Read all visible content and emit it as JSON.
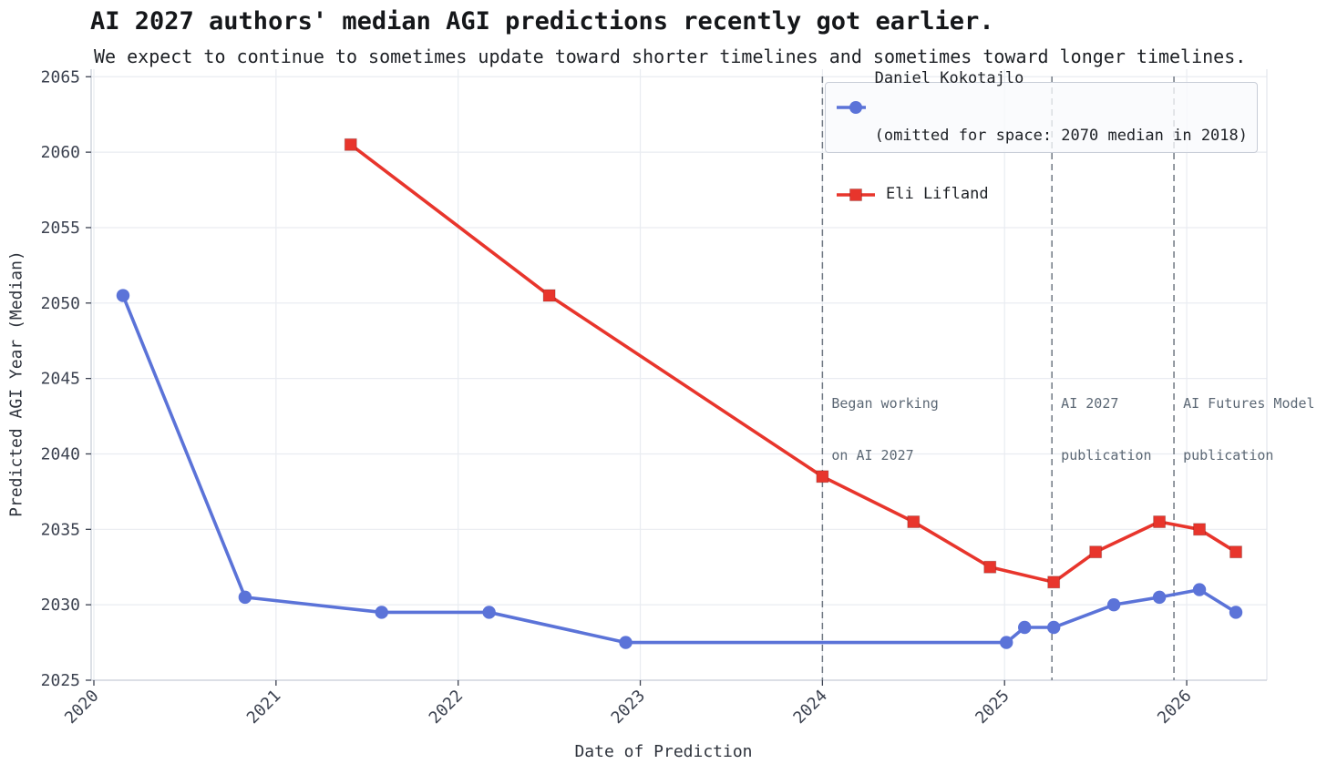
{
  "page": {
    "title": "AI 2027 authors' median AGI predictions recently got earlier.",
    "subtitle": "We expect to continue to sometimes update toward shorter timelines and sometimes toward longer timelines."
  },
  "chart_data": {
    "type": "line",
    "title": "AI 2027 authors' median AGI predictions recently got earlier.",
    "subtitle": "We expect to continue to sometimes update toward shorter timelines and sometimes toward longer timelines.",
    "xlabel": "Date of Prediction",
    "ylabel": "Predicted AGI Year (Median)",
    "xlim": [
      2019.985,
      2026.44
    ],
    "ylim": [
      2025,
      2065.5
    ],
    "x_ticks": [
      2020,
      2021,
      2022,
      2023,
      2024,
      2025,
      2026
    ],
    "y_ticks": [
      2025,
      2030,
      2035,
      2040,
      2045,
      2050,
      2055,
      2060,
      2065
    ],
    "grid": true,
    "legend_position": "top-right",
    "series": [
      {
        "name": "Daniel Kokotajlo (omitted for space: 2070 median in 2018)",
        "legend_label_lines": [
          "Daniel Kokotajlo",
          "(omitted for space: 2070 median in 2018)"
        ],
        "color": "#5b73d8",
        "marker": "circle",
        "points": [
          [
            2020.16,
            2050.5
          ],
          [
            2020.83,
            2030.5
          ],
          [
            2021.58,
            2029.5
          ],
          [
            2022.17,
            2029.5
          ],
          [
            2022.92,
            2027.5
          ],
          [
            2025.01,
            2027.5
          ],
          [
            2025.11,
            2028.5
          ],
          [
            2025.27,
            2028.5
          ],
          [
            2025.6,
            2030.0
          ],
          [
            2025.85,
            2030.5
          ],
          [
            2026.07,
            2031.0
          ],
          [
            2026.27,
            2029.5
          ]
        ]
      },
      {
        "name": "Eli Lifland",
        "legend_label_lines": [
          "Eli Lifland"
        ],
        "color": "#e8352c",
        "marker": "square",
        "points": [
          [
            2021.41,
            2060.5
          ],
          [
            2022.5,
            2050.5
          ],
          [
            2024.0,
            2038.5
          ],
          [
            2024.5,
            2035.5
          ],
          [
            2024.92,
            2032.5
          ],
          [
            2025.27,
            2031.5
          ],
          [
            2025.5,
            2033.5
          ],
          [
            2025.85,
            2035.5
          ],
          [
            2026.07,
            2035.0
          ],
          [
            2026.27,
            2033.5
          ]
        ]
      }
    ],
    "vlines": [
      {
        "x": 2024.0,
        "label": "Began working on AI 2027",
        "label_lines": [
          "Began working",
          "on AI 2027"
        ]
      },
      {
        "x": 2025.26,
        "label": "AI 2027 publication",
        "label_lines": [
          "AI 2027",
          "publication"
        ]
      },
      {
        "x": 2025.93,
        "label": "AI Futures Model publication",
        "label_lines": [
          "AI Futures Model",
          "publication"
        ]
      }
    ]
  },
  "colors": {
    "daniel_blue": "#5b73d8",
    "eli_red": "#e8352c",
    "grid": "#e9ecf1",
    "spine": "#c9cfd9",
    "right_spine": "#e2e6ec",
    "tick_label": "#3c4250",
    "axis_label": "#2e333c",
    "annotation": "#5c6875",
    "vline": "#6f7782",
    "legend_bg": "rgba(248,250,253,0.78)",
    "legend_border": "#c8cdd7",
    "title": "#15171a"
  }
}
